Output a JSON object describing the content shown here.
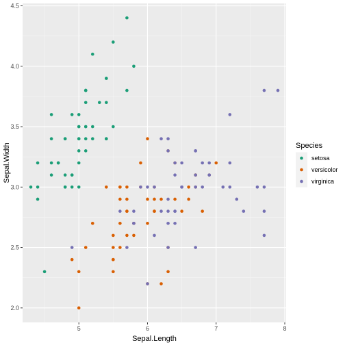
{
  "chart_data": {
    "type": "scatter",
    "xlabel": "Sepal.Length",
    "ylabel": "Sepal.Width",
    "xlim": [
      4.18,
      8.02
    ],
    "ylim": [
      1.88,
      4.52
    ],
    "x_ticks": [
      5,
      6,
      7,
      8
    ],
    "x_tick_labels": [
      "5",
      "6",
      "7",
      "8"
    ],
    "y_ticks": [
      2.0,
      2.5,
      3.0,
      3.5,
      4.0,
      4.5
    ],
    "y_tick_labels": [
      "2.0",
      "2.5",
      "3.0",
      "3.5",
      "4.0",
      "4.5"
    ],
    "grid": true,
    "legend": {
      "title": "Species",
      "position": "right"
    },
    "series": [
      {
        "name": "setosa",
        "color": "#1b9e77",
        "points": [
          [
            5.1,
            3.5
          ],
          [
            4.9,
            3.0
          ],
          [
            4.7,
            3.2
          ],
          [
            4.6,
            3.1
          ],
          [
            5.0,
            3.6
          ],
          [
            5.4,
            3.9
          ],
          [
            4.6,
            3.4
          ],
          [
            5.0,
            3.4
          ],
          [
            4.4,
            2.9
          ],
          [
            4.9,
            3.1
          ],
          [
            5.4,
            3.7
          ],
          [
            4.8,
            3.4
          ],
          [
            4.8,
            3.0
          ],
          [
            4.3,
            3.0
          ],
          [
            5.8,
            4.0
          ],
          [
            5.7,
            4.4
          ],
          [
            5.4,
            3.9
          ],
          [
            5.1,
            3.5
          ],
          [
            5.7,
            3.8
          ],
          [
            5.1,
            3.8
          ],
          [
            5.4,
            3.4
          ],
          [
            5.1,
            3.7
          ],
          [
            4.6,
            3.6
          ],
          [
            5.1,
            3.3
          ],
          [
            4.8,
            3.4
          ],
          [
            5.0,
            3.0
          ],
          [
            5.0,
            3.4
          ],
          [
            5.2,
            3.5
          ],
          [
            5.2,
            3.4
          ],
          [
            4.7,
            3.2
          ],
          [
            4.8,
            3.1
          ],
          [
            5.4,
            3.4
          ],
          [
            5.2,
            4.1
          ],
          [
            5.5,
            4.2
          ],
          [
            4.9,
            3.1
          ],
          [
            5.0,
            3.2
          ],
          [
            5.5,
            3.5
          ],
          [
            4.9,
            3.6
          ],
          [
            4.4,
            3.0
          ],
          [
            5.1,
            3.4
          ],
          [
            5.0,
            3.5
          ],
          [
            4.5,
            2.3
          ],
          [
            4.4,
            3.2
          ],
          [
            5.0,
            3.5
          ],
          [
            5.1,
            3.8
          ],
          [
            4.8,
            3.0
          ],
          [
            5.1,
            3.8
          ],
          [
            4.6,
            3.2
          ],
          [
            5.3,
            3.7
          ],
          [
            5.0,
            3.3
          ]
        ]
      },
      {
        "name": "versicolor",
        "color": "#d95f02",
        "points": [
          [
            7.0,
            3.2
          ],
          [
            6.4,
            3.2
          ],
          [
            6.9,
            3.1
          ],
          [
            5.5,
            2.3
          ],
          [
            6.5,
            2.8
          ],
          [
            5.7,
            2.8
          ],
          [
            6.3,
            3.3
          ],
          [
            4.9,
            2.4
          ],
          [
            6.6,
            2.9
          ],
          [
            5.2,
            2.7
          ],
          [
            5.0,
            2.0
          ],
          [
            5.9,
            3.0
          ],
          [
            6.0,
            2.2
          ],
          [
            6.1,
            2.9
          ],
          [
            5.6,
            2.9
          ],
          [
            6.7,
            3.1
          ],
          [
            5.6,
            3.0
          ],
          [
            5.8,
            2.7
          ],
          [
            6.2,
            2.2
          ],
          [
            5.6,
            2.5
          ],
          [
            5.9,
            3.2
          ],
          [
            6.1,
            2.8
          ],
          [
            6.3,
            2.5
          ],
          [
            6.1,
            2.8
          ],
          [
            6.4,
            2.9
          ],
          [
            6.6,
            3.0
          ],
          [
            6.8,
            2.8
          ],
          [
            6.7,
            3.0
          ],
          [
            6.0,
            2.9
          ],
          [
            5.7,
            2.6
          ],
          [
            5.5,
            2.4
          ],
          [
            5.5,
            2.4
          ],
          [
            5.8,
            2.7
          ],
          [
            6.0,
            2.7
          ],
          [
            5.4,
            3.0
          ],
          [
            6.0,
            3.4
          ],
          [
            6.7,
            3.1
          ],
          [
            6.3,
            2.3
          ],
          [
            5.6,
            3.0
          ],
          [
            5.5,
            2.5
          ],
          [
            5.5,
            2.6
          ],
          [
            6.1,
            3.0
          ],
          [
            5.8,
            2.6
          ],
          [
            5.0,
            2.3
          ],
          [
            5.6,
            2.7
          ],
          [
            5.7,
            3.0
          ],
          [
            5.7,
            2.9
          ],
          [
            6.2,
            2.9
          ],
          [
            5.1,
            2.5
          ],
          [
            5.7,
            2.8
          ]
        ]
      },
      {
        "name": "virginica",
        "color": "#7570b3",
        "points": [
          [
            6.3,
            3.3
          ],
          [
            5.8,
            2.7
          ],
          [
            7.1,
            3.0
          ],
          [
            6.3,
            2.9
          ],
          [
            6.5,
            3.0
          ],
          [
            7.6,
            3.0
          ],
          [
            4.9,
            2.5
          ],
          [
            7.3,
            2.9
          ],
          [
            6.7,
            2.5
          ],
          [
            7.2,
            3.6
          ],
          [
            6.5,
            3.2
          ],
          [
            6.4,
            2.7
          ],
          [
            6.8,
            3.0
          ],
          [
            5.7,
            2.5
          ],
          [
            5.8,
            2.8
          ],
          [
            6.4,
            3.2
          ],
          [
            6.5,
            3.0
          ],
          [
            7.7,
            3.8
          ],
          [
            7.7,
            2.6
          ],
          [
            6.0,
            2.2
          ],
          [
            6.9,
            3.2
          ],
          [
            5.6,
            2.8
          ],
          [
            7.7,
            2.8
          ],
          [
            6.3,
            2.7
          ],
          [
            6.7,
            3.3
          ],
          [
            7.2,
            3.2
          ],
          [
            6.2,
            2.8
          ],
          [
            6.1,
            3.0
          ],
          [
            6.4,
            2.8
          ],
          [
            7.2,
            3.0
          ],
          [
            7.4,
            2.8
          ],
          [
            7.9,
            3.8
          ],
          [
            6.4,
            2.8
          ],
          [
            6.3,
            2.8
          ],
          [
            6.1,
            2.6
          ],
          [
            7.7,
            3.0
          ],
          [
            6.3,
            3.4
          ],
          [
            6.4,
            3.1
          ],
          [
            6.0,
            3.0
          ],
          [
            6.9,
            3.1
          ],
          [
            6.7,
            3.1
          ],
          [
            6.9,
            3.1
          ],
          [
            5.8,
            2.7
          ],
          [
            6.8,
            3.2
          ],
          [
            6.7,
            3.3
          ],
          [
            6.7,
            3.0
          ],
          [
            6.3,
            2.5
          ],
          [
            6.5,
            3.0
          ],
          [
            6.2,
            3.4
          ],
          [
            5.9,
            3.0
          ]
        ]
      }
    ]
  }
}
